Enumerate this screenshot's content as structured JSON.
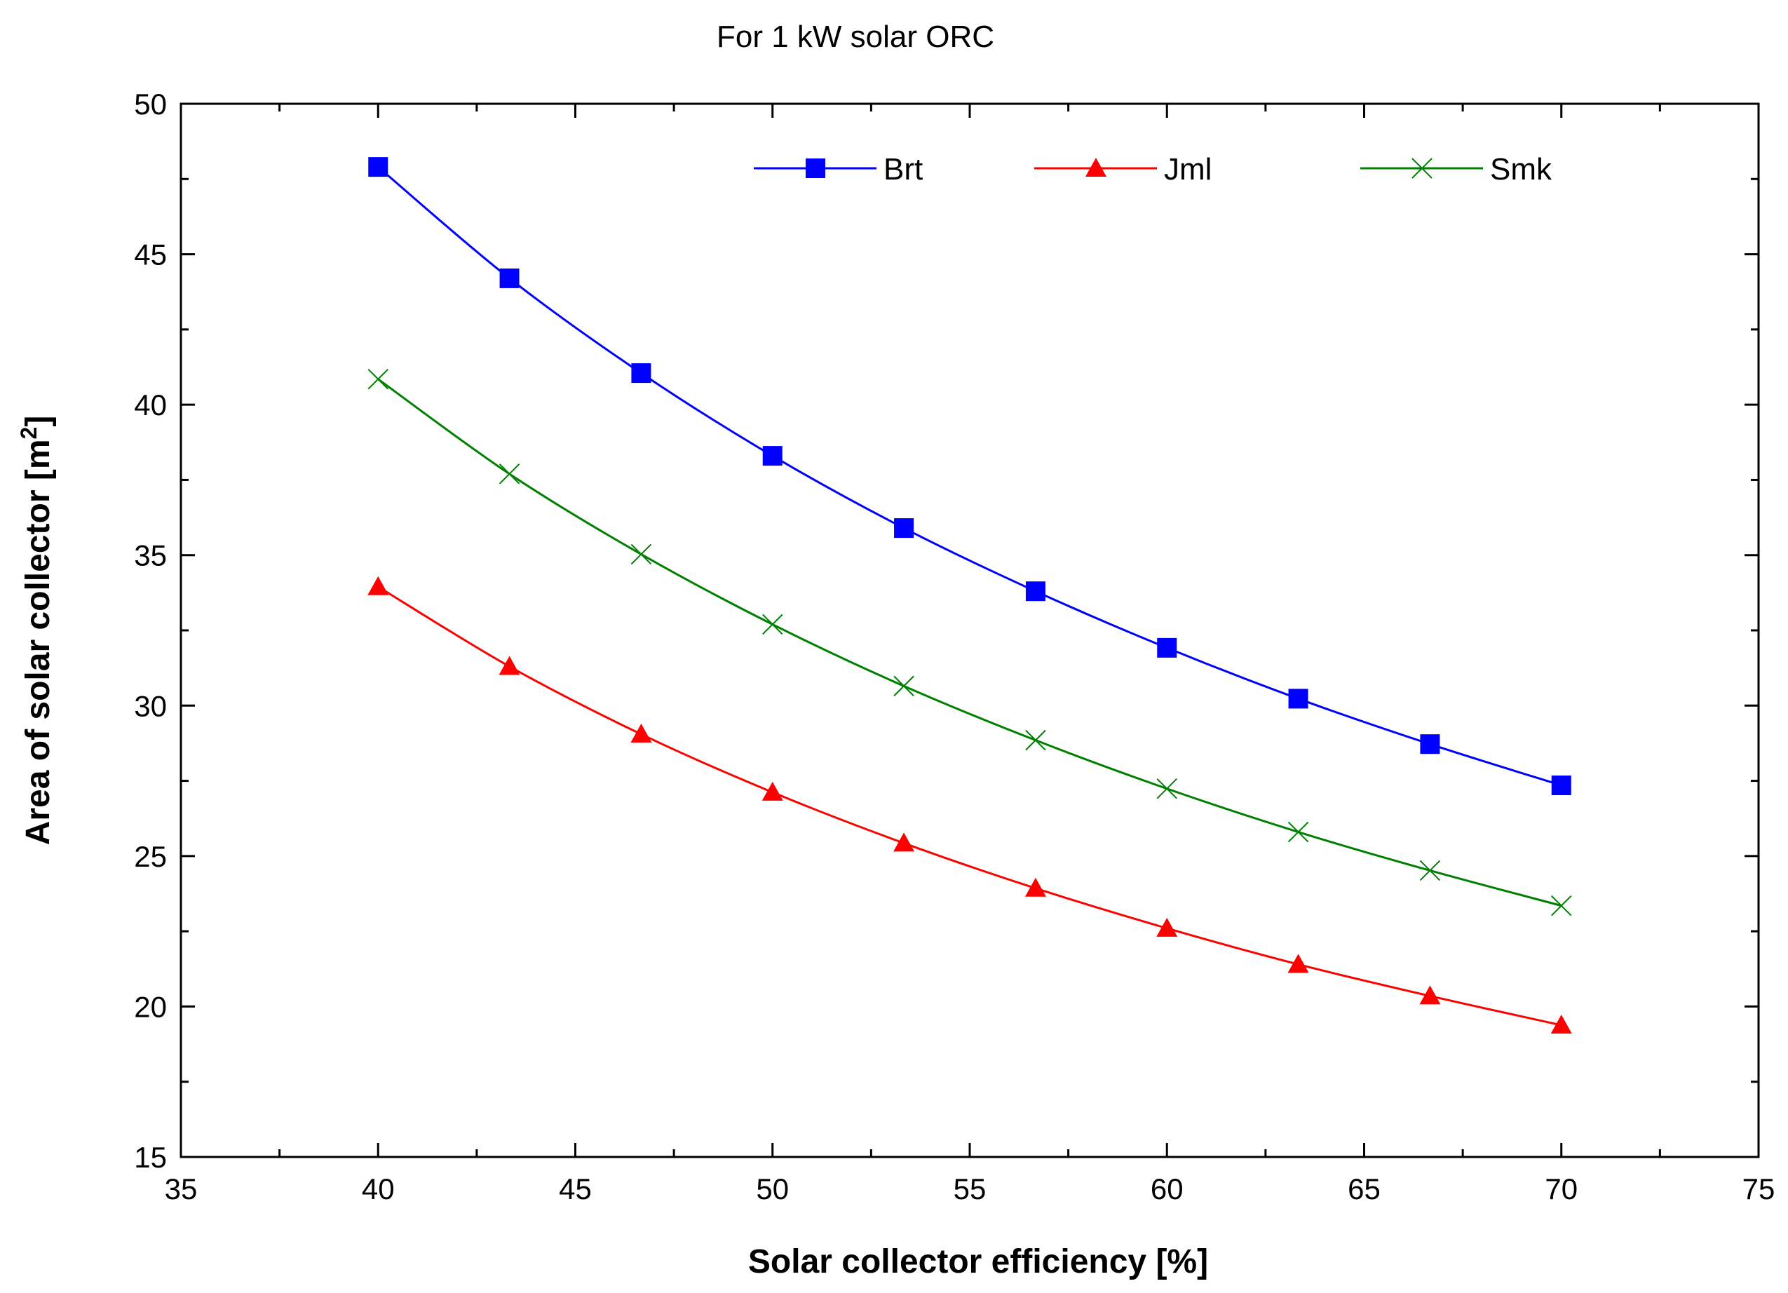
{
  "chart_data": {
    "type": "line",
    "title": "For 1 kW solar ORC",
    "xlabel": "Solar collector efficiency [%]",
    "ylabel_main": "Area of solar collector [m",
    "ylabel_sup": "2",
    "ylabel_end": "]",
    "xlim": [
      35,
      75
    ],
    "ylim": [
      15,
      50
    ],
    "xticks": [
      35,
      40,
      45,
      50,
      55,
      60,
      65,
      70,
      75
    ],
    "yticks": [
      15,
      20,
      25,
      30,
      35,
      40,
      45,
      50
    ],
    "x": [
      40,
      43.33,
      46.67,
      50,
      53.33,
      56.67,
      60,
      63.33,
      66.67,
      70
    ],
    "series": [
      {
        "name": "Brt",
        "color": "#0000ff",
        "marker": "square",
        "values": [
          47.9,
          44.2,
          41.05,
          38.3,
          35.9,
          33.8,
          31.92,
          30.23,
          28.72,
          27.35
        ]
      },
      {
        "name": "Jml",
        "color": "#ff0000",
        "marker": "triangle",
        "values": [
          33.95,
          31.3,
          29.05,
          27.12,
          25.43,
          23.93,
          22.6,
          21.4,
          20.35,
          19.38
        ]
      },
      {
        "name": "Smk",
        "color": "#008000",
        "marker": "bowtie",
        "values": [
          40.85,
          37.7,
          35.03,
          32.7,
          30.65,
          28.85,
          27.24,
          25.8,
          24.52,
          23.35
        ]
      }
    ],
    "legend_position": "top, in a row"
  }
}
